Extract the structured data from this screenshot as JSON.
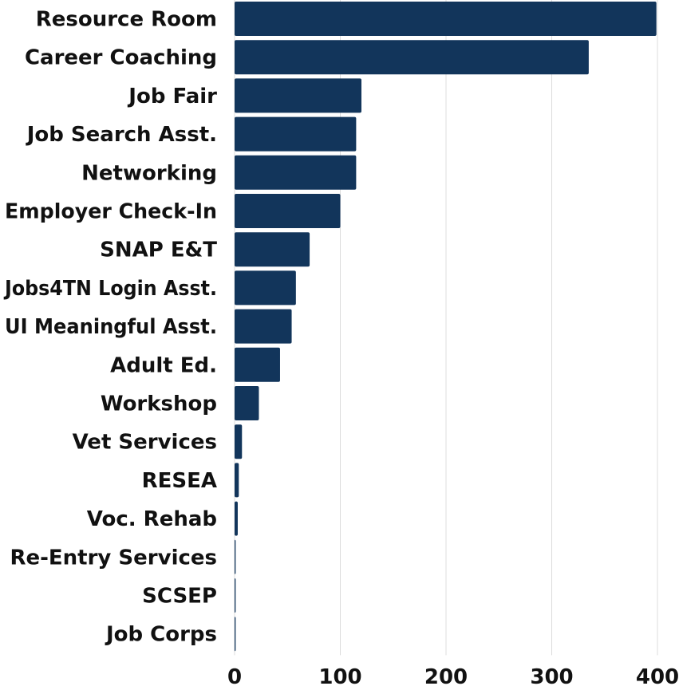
{
  "chart_data": {
    "type": "bar",
    "orientation": "horizontal",
    "categories": [
      "Resource Room",
      "Career Coaching",
      "Job Fair",
      "Job Search Asst.",
      "Networking",
      "Employer Check-In",
      "SNAP E&T",
      "Jobs4TN Login Asst.",
      "UI Meaningful Asst.",
      "Adult Ed.",
      "Workshop",
      "Vet Services",
      "RESEA",
      "Voc. Rehab",
      "Re-Entry Services",
      "SCSEP",
      "Job Corps"
    ],
    "values": [
      399,
      335,
      120,
      115,
      115,
      100,
      71,
      58,
      54,
      43,
      23,
      7,
      4,
      3,
      1,
      1,
      1
    ],
    "xlim": [
      0,
      400
    ],
    "xticks": [
      0,
      100,
      200,
      300,
      400
    ],
    "grid": true,
    "bar_color": "#12355b"
  }
}
